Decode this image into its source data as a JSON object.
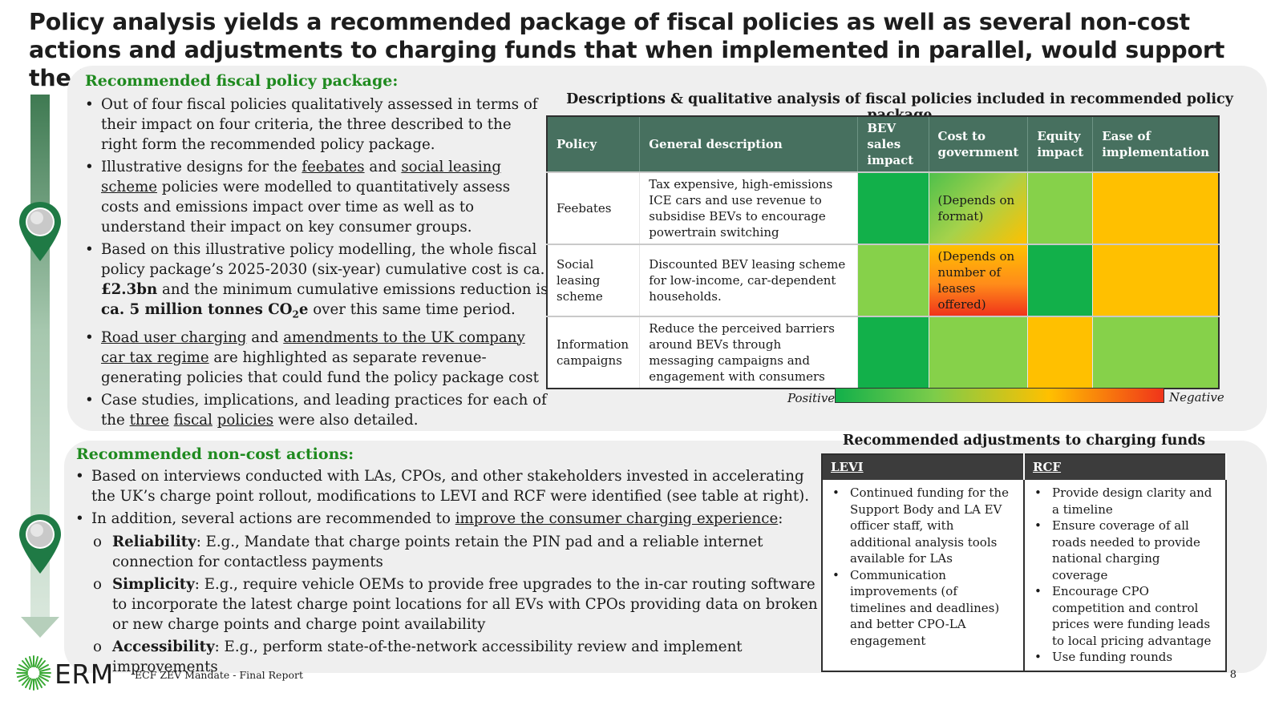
{
  "title": "Policy analysis yields a recommended package of fiscal policies as well as several non-cost actions and adjustments to charging funds that when implemented in parallel, would support the ZEV mandate",
  "fiscal_section": {
    "heading": "Recommended fiscal policy package:",
    "bullets": [
      {
        "text": "Out of four fiscal policies qualitatively assessed in terms of their impact on four criteria, the three described to the right form the recommended policy package."
      },
      {
        "pre": "Illustrative designs for the ",
        "link1": "feebates",
        "mid": " and ",
        "link2": "social leasing scheme",
        "post": " policies were modelled to quantitatively assess costs and emissions impact over time as well as to understand their impact on key consumer groups."
      },
      {
        "pre": "Based on this illustrative policy modelling, the whole fiscal policy package’s 2025-2030 (six-year) cumulative cost is ca. ",
        "bold1": "£2.3bn",
        "mid": " and the minimum cumulative emissions reduction is ",
        "bold2": "ca. 5 million tonnes CO",
        "sub": "2",
        "bold3": "e",
        "post": " over this same time period."
      },
      {
        "link1": "Road user charging",
        "mid": " and ",
        "link2": "amendments to the UK company car tax regime",
        "post": " are highlighted as separate revenue-generating policies that could fund the policy package cost"
      },
      {
        "pre": "Case studies, implications, and leading practices for each of the ",
        "link1": "three",
        "sp1": " ",
        "link2": "fiscal",
        "sp2": " ",
        "link3": "policies",
        "post": " were also detailed."
      }
    ]
  },
  "fiscal_table": {
    "caption": "Descriptions & qualitative analysis of fiscal policies included in recommended policy package",
    "headers": [
      "Policy",
      "General description",
      "BEV sales impact",
      "Cost to government",
      "Equity impact",
      "Ease of implementation"
    ],
    "rows": [
      {
        "policy": "Feebates",
        "description": "Tax expensive, high-emissions ICE cars and use revenue to subsidise BEVs to encourage powertrain switching",
        "bev_sales": "very positive",
        "cost": "positive to neutral",
        "cost_note": "(Depends on format)",
        "equity": "positive",
        "ease": "neutral"
      },
      {
        "policy": "Social leasing scheme",
        "description": "Discounted BEV leasing scheme for low-income, car-dependent households.",
        "bev_sales": "positive",
        "cost": "neutral to negative",
        "cost_note": "(Depends on number of leases offered)",
        "equity": "very positive",
        "ease": "neutral"
      },
      {
        "policy": "Information campaigns",
        "description": "Reduce the perceived barriers around BEVs through messaging campaigns and engagement with consumers",
        "bev_sales": "very positive",
        "cost": "positive",
        "cost_note": "",
        "equity": "neutral",
        "ease": "positive"
      }
    ],
    "legend": {
      "positive": "Positive",
      "negative": "Negative"
    },
    "colors": {
      "very_positive": "#12b04a",
      "positive": "#86d14a",
      "neutral": "#ffc000",
      "negative": "#f0341a",
      "header": "#47705f"
    }
  },
  "noncost_section": {
    "heading": "Recommended non-cost actions:",
    "bullet1": "Based on interviews conducted with LAs, CPOs, and other stakeholders invested in accelerating the UK’s charge point rollout, modifications to LEVI and RCF were identified (see table at right).",
    "bullet2_pre": "In addition, several actions are recommended to ",
    "bullet2_link": "improve the consumer charging experience",
    "bullet2_post": ":",
    "subitems": [
      {
        "label": "Reliability",
        "text": ": E.g., Mandate that charge points retain the PIN pad and a reliable internet connection for contactless payments"
      },
      {
        "label": "Simplicity",
        "text": ": E.g., require vehicle OEMs to provide free upgrades to the in-car routing software to incorporate the latest charge point locations for all EVs with CPOs providing data on broken or new charge points and charge point availability"
      },
      {
        "label": "Accessibility",
        "text": ": E.g., perform state-of-the-network accessibility review and implement improvements"
      }
    ]
  },
  "funds_table": {
    "caption": "Recommended adjustments to charging funds",
    "headers": [
      "LEVI",
      "RCF"
    ],
    "levi": [
      "Continued funding for the Support Body and LA EV officer staff, with additional analysis tools available for LAs",
      "Communication improvements (of timelines and deadlines) and better CPO-LA engagement"
    ],
    "rcf": [
      "Provide design clarity and a timeline",
      "Ensure coverage of all roads needed to provide national charging coverage",
      "Encourage CPO competition and control prices were funding leads to local pricing advantage",
      "Use funding rounds"
    ]
  },
  "footer": {
    "logo": "ERM",
    "report": "ECF ZEV Mandate - Final Report",
    "page": "8"
  },
  "colors": {
    "accent_green": "#1f8a1f",
    "panel": "#efefef",
    "pin": "#1f7a45"
  }
}
